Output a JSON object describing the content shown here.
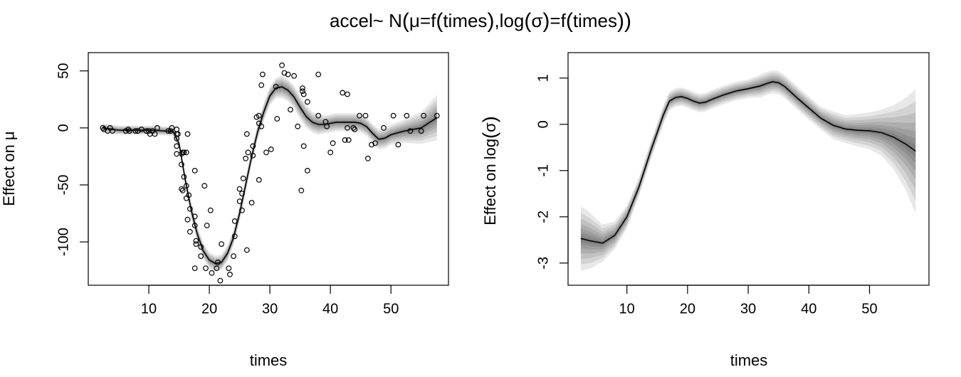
{
  "figure": {
    "title_prefix": "accel~ N",
    "title_open": "(",
    "title_mu": "μ=f",
    "title_times1": "times",
    "title_mid": ",log",
    "title_sigma": "σ",
    "title_eq": "=f",
    "title_times2": "times",
    "title_close": ")"
  },
  "left": {
    "ylabel_prefix": "Effect on ",
    "ylabel_sym": "μ"
  },
  "right": {
    "ylabel_prefix": "Effect on log",
    "ylabel_sym": "σ"
  },
  "chart_data": [
    {
      "type": "scatter",
      "xlabel": "times",
      "ylabel": "Effect on μ",
      "xlim": [
        0,
        59.5
      ],
      "ylim": [
        -138,
        66
      ],
      "xticks": [
        10,
        20,
        30,
        40,
        50
      ],
      "yticks": [
        -100,
        -50,
        0,
        50
      ],
      "grid": false,
      "series": [
        {
          "points": [
            [
              2.4,
              0
            ],
            [
              2.6,
              -1.3
            ],
            [
              3.2,
              -2.7
            ],
            [
              3.6,
              0
            ],
            [
              4,
              -2.7
            ],
            [
              6.2,
              -2.7
            ],
            [
              6.6,
              -1.3
            ],
            [
              6.8,
              -2.7
            ],
            [
              7.8,
              -2.7
            ],
            [
              8.2,
              -2.7
            ],
            [
              8.8,
              -1.3
            ],
            [
              9.6,
              -2.7
            ],
            [
              10,
              -2.7
            ],
            [
              10.2,
              -5.4
            ],
            [
              10.6,
              -2.7
            ],
            [
              11,
              -5.4
            ],
            [
              11.4,
              0
            ],
            [
              13.2,
              -2.7
            ],
            [
              13.6,
              -2.7
            ],
            [
              13.8,
              0
            ],
            [
              14.6,
              -5.4
            ],
            [
              14.6,
              -9.3
            ],
            [
              14.6,
              -16
            ],
            [
              14.6,
              -22.8
            ],
            [
              14.6,
              -1.3
            ],
            [
              14.8,
              -5.4
            ],
            [
              15.4,
              -22.8
            ],
            [
              15.4,
              -32.1
            ],
            [
              15.4,
              -53.5
            ],
            [
              15.6,
              -54.9
            ],
            [
              15.6,
              -21.5
            ],
            [
              15.8,
              -42.9
            ],
            [
              15.8,
              -21.5
            ],
            [
              16.2,
              -21.5
            ],
            [
              16.2,
              -50.8
            ],
            [
              16.2,
              -61.7
            ],
            [
              16.4,
              -5.4
            ],
            [
              16.4,
              -80.4
            ],
            [
              16.6,
              -59
            ],
            [
              16.8,
              -71
            ],
            [
              16.8,
              -91.1
            ],
            [
              17.6,
              -77.7
            ],
            [
              17.6,
              -37.5
            ],
            [
              17.6,
              -85.6
            ],
            [
              17.6,
              -123.1
            ],
            [
              17.8,
              -101.9
            ],
            [
              17.8,
              -99.1
            ],
            [
              18.6,
              -104.4
            ],
            [
              18.6,
              -112.5
            ],
            [
              19.2,
              -50.8
            ],
            [
              19.4,
              -123.1
            ],
            [
              19.6,
              -85.6
            ],
            [
              20.2,
              -72.3
            ],
            [
              20.4,
              -127.2
            ],
            [
              21.2,
              -123.1
            ],
            [
              21.4,
              -117.9
            ],
            [
              21.8,
              -134
            ],
            [
              22,
              -101.9
            ],
            [
              23.2,
              -123.1
            ],
            [
              23.4,
              -128.5
            ],
            [
              24,
              -112.5
            ],
            [
              24.2,
              -95.1
            ],
            [
              24.2,
              -81.8
            ],
            [
              25,
              -53.5
            ],
            [
              25,
              -64.4
            ],
            [
              25.4,
              -57.6
            ],
            [
              25.4,
              -72.3
            ],
            [
              25.6,
              -44.3
            ],
            [
              26,
              -26.8
            ],
            [
              26.2,
              -5.4
            ],
            [
              26.2,
              -107.1
            ],
            [
              26.4,
              -21.5
            ],
            [
              27,
              -65.6
            ],
            [
              27.2,
              -16
            ],
            [
              27.2,
              -24.2
            ],
            [
              27.8,
              9.5
            ],
            [
              28.2,
              4
            ],
            [
              28.2,
              -45.6
            ],
            [
              28.2,
              10.7
            ],
            [
              28.6,
              1.3
            ],
            [
              28.6,
              37.5
            ],
            [
              28.8,
              46.9
            ],
            [
              29.4,
              -21.5
            ],
            [
              30.2,
              -18.8
            ],
            [
              31,
              36.2
            ],
            [
              31.2,
              8
            ],
            [
              32,
              54.9
            ],
            [
              32.4,
              48.2
            ],
            [
              33,
              46.9
            ],
            [
              33.4,
              16
            ],
            [
              34,
              45.6
            ],
            [
              34.6,
              1.3
            ],
            [
              35.2,
              -54.9
            ],
            [
              35.4,
              32.1
            ],
            [
              35.4,
              34.8
            ],
            [
              35.6,
              -16
            ],
            [
              35.6,
              29.5
            ],
            [
              36.2,
              -37.5
            ],
            [
              36.2,
              22.8
            ],
            [
              38,
              10.7
            ],
            [
              38,
              46.9
            ],
            [
              39.2,
              5.4
            ],
            [
              39.4,
              1.3
            ],
            [
              40,
              -21.5
            ],
            [
              40.4,
              -13.4
            ],
            [
              42,
              30.8
            ],
            [
              42.4,
              -10.7
            ],
            [
              42.8,
              29.5
            ],
            [
              42.8,
              0
            ],
            [
              43,
              -10.7
            ],
            [
              43.8,
              0
            ],
            [
              44,
              -1.3
            ],
            [
              44.8,
              10.7
            ],
            [
              45.8,
              10.7
            ],
            [
              46.2,
              -26.8
            ],
            [
              46.8,
              -14.7
            ],
            [
              47.4,
              -13.4
            ],
            [
              48.8,
              0
            ],
            [
              50.4,
              10.7
            ],
            [
              51.2,
              -14.7
            ],
            [
              52.6,
              10.7
            ],
            [
              53.2,
              -2.7
            ],
            [
              55,
              -2.7
            ],
            [
              55.4,
              10.7
            ],
            [
              57.6,
              10.7
            ]
          ]
        },
        {
          "type": "line",
          "x": [
            2.4,
            5,
            10,
            14,
            15,
            16,
            17,
            18,
            19,
            20,
            21,
            22,
            23,
            24,
            25,
            26,
            27,
            28,
            29,
            30,
            31,
            32,
            33,
            34,
            35,
            36,
            37,
            38,
            39,
            40,
            41,
            42,
            43,
            44,
            45,
            46,
            47,
            48,
            49,
            50,
            52,
            55,
            57.6
          ],
          "y": [
            0,
            -2,
            -2,
            -3,
            -14,
            -45,
            -72,
            -93,
            -108,
            -116,
            -119,
            -118,
            -110,
            -96,
            -75,
            -50,
            -25,
            -3,
            14,
            28,
            35,
            36,
            33,
            27,
            18,
            10,
            5,
            3,
            3,
            4,
            5,
            5,
            5,
            5,
            4,
            1,
            -5,
            -10,
            -9,
            -6,
            -3,
            0,
            9
          ],
          "band_width": [
            4,
            4,
            4,
            4,
            5,
            6,
            7,
            7,
            7,
            7,
            7,
            7,
            7,
            7,
            7,
            7,
            7,
            7,
            8,
            8,
            9,
            10,
            10,
            10,
            10,
            10,
            9,
            9,
            8,
            8,
            8,
            8,
            8,
            8,
            8,
            8,
            8,
            9,
            9,
            9,
            10,
            14,
            20
          ]
        }
      ]
    },
    {
      "type": "line",
      "xlabel": "times",
      "ylabel": "Effect on log(σ)",
      "xlim": [
        0.3,
        59.8
      ],
      "ylim": [
        -3.48,
        1.55
      ],
      "xticks": [
        10,
        20,
        30,
        40,
        50
      ],
      "yticks": [
        -3,
        -2,
        -1,
        0,
        1
      ],
      "grid": false,
      "series": [
        {
          "x": [
            2.4,
            4,
            6,
            8,
            10,
            12,
            14,
            16,
            17,
            18,
            19,
            20,
            21,
            22,
            23,
            24,
            26,
            28,
            30,
            32,
            33,
            34,
            35,
            36,
            37,
            38,
            40,
            42,
            44,
            46,
            48,
            50,
            52,
            54,
            56,
            57.6
          ],
          "y": [
            -2.47,
            -2.52,
            -2.57,
            -2.4,
            -2.0,
            -1.35,
            -0.55,
            0.2,
            0.5,
            0.58,
            0.6,
            0.56,
            0.5,
            0.46,
            0.48,
            0.54,
            0.64,
            0.72,
            0.77,
            0.83,
            0.88,
            0.92,
            0.9,
            0.82,
            0.7,
            0.58,
            0.35,
            0.13,
            -0.02,
            -0.1,
            -0.13,
            -0.14,
            -0.18,
            -0.28,
            -0.43,
            -0.58
          ],
          "band_width": [
            0.7,
            0.6,
            0.4,
            0.3,
            0.25,
            0.2,
            0.2,
            0.2,
            0.2,
            0.2,
            0.2,
            0.2,
            0.2,
            0.2,
            0.2,
            0.2,
            0.2,
            0.2,
            0.2,
            0.25,
            0.25,
            0.25,
            0.25,
            0.25,
            0.25,
            0.25,
            0.25,
            0.25,
            0.3,
            0.3,
            0.35,
            0.4,
            0.5,
            0.7,
            1.0,
            1.35
          ]
        }
      ]
    }
  ]
}
